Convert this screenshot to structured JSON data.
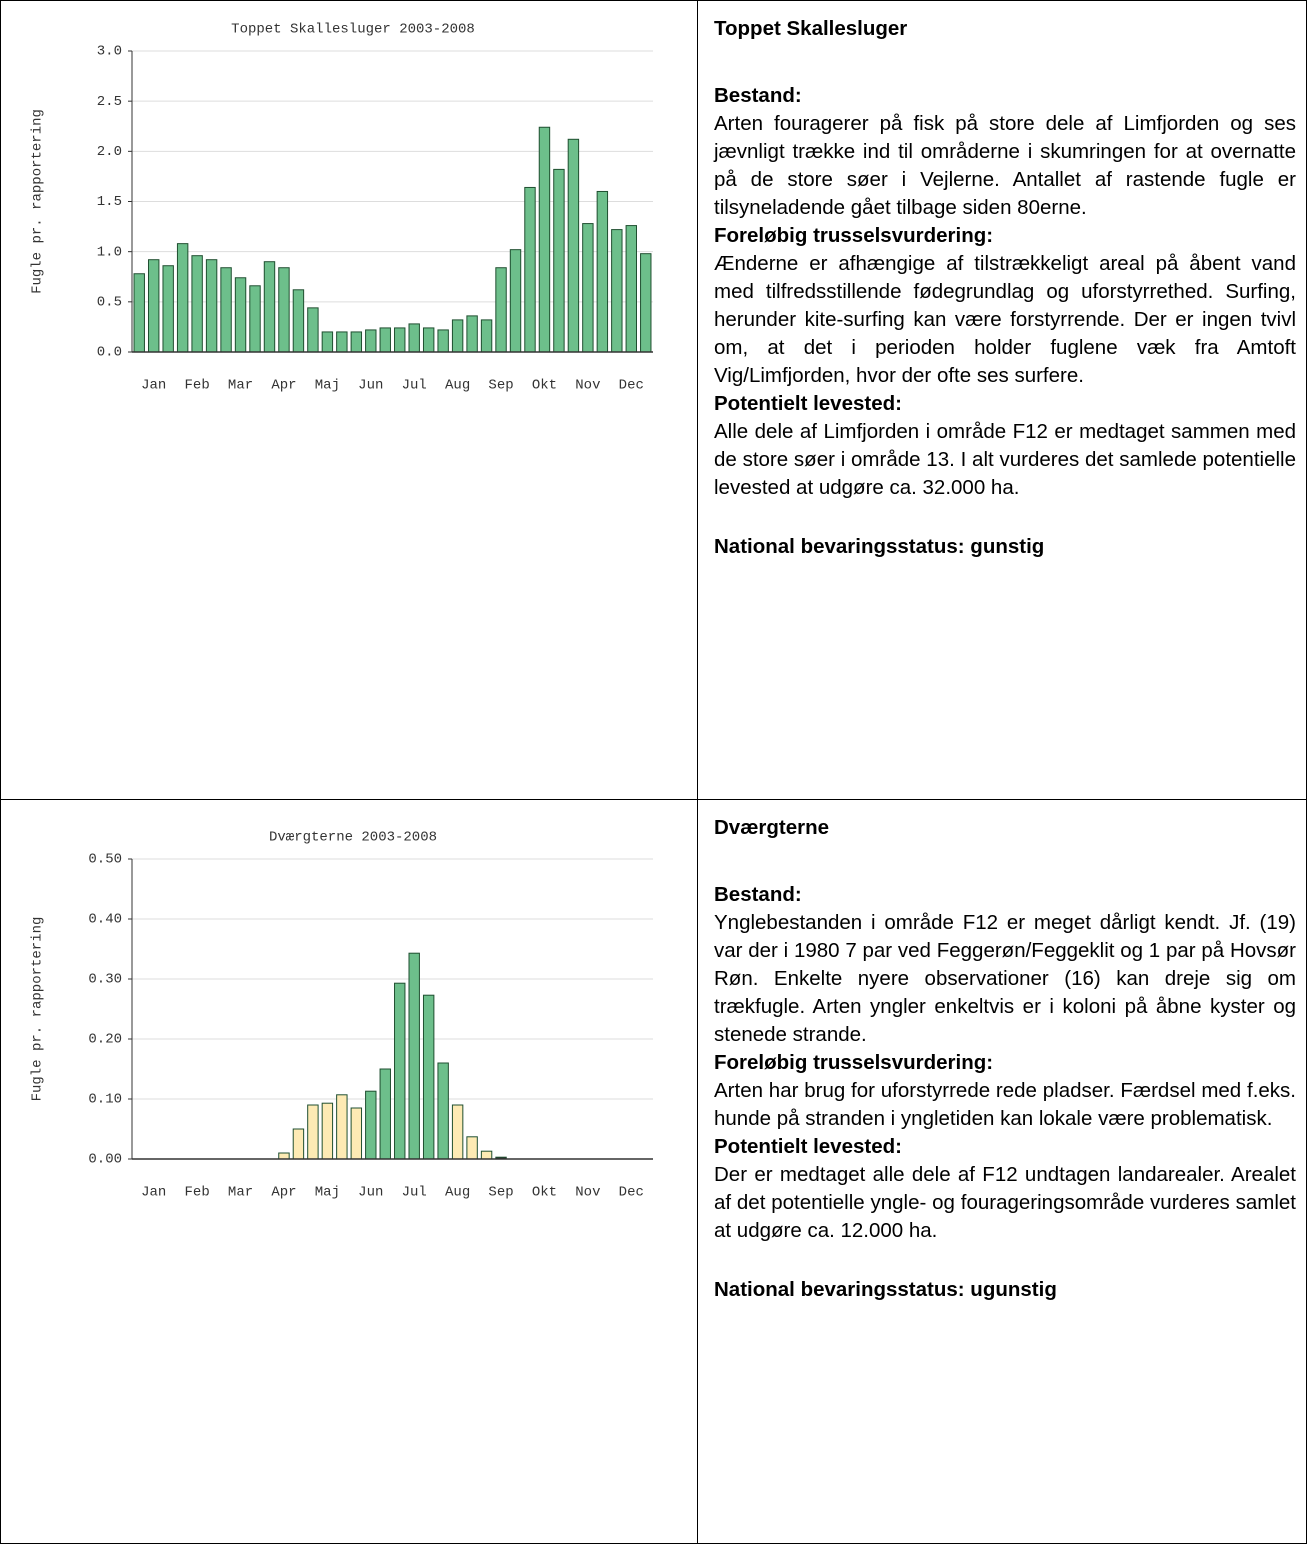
{
  "chart_data": [
    {
      "type": "bar",
      "title": "Toppet Skallesluger 2003-2008",
      "y_label": "Fugle pr. rapportering",
      "categories": [
        null,
        "Jan",
        null,
        null,
        "Feb",
        null,
        null,
        "Mar",
        null,
        null,
        "Apr",
        null,
        null,
        "Maj",
        null,
        null,
        "Jun",
        null,
        null,
        "Jul",
        null,
        null,
        "Aug",
        null,
        null,
        "Sep",
        null,
        null,
        "Okt",
        null,
        null,
        "Nov",
        null,
        null,
        "Dec",
        null
      ],
      "values": [
        0.78,
        0.92,
        0.86,
        1.08,
        0.96,
        0.92,
        0.84,
        0.74,
        0.66,
        0.9,
        0.84,
        0.62,
        0.44,
        0.2,
        0.2,
        0.2,
        0.22,
        0.24,
        0.24,
        0.28,
        0.24,
        0.22,
        0.32,
        0.36,
        0.32,
        0.84,
        1.02,
        1.64,
        2.24,
        1.82,
        2.12,
        1.28,
        1.6,
        1.22,
        1.26,
        0.98
      ],
      "color": "#6dbf8b",
      "ylim": [
        0,
        3
      ],
      "yticks": [
        {
          "value": 0,
          "label": "0.0"
        },
        {
          "value": 0.5,
          "label": "0.5"
        },
        {
          "value": 1,
          "label": "1.0"
        },
        {
          "value": 1.5,
          "label": "1.5"
        },
        {
          "value": 2,
          "label": "2.0"
        },
        {
          "value": 2.5,
          "label": "2.5"
        },
        {
          "value": 3,
          "label": "3.0"
        }
      ],
      "grid": true
    },
    {
      "type": "bar",
      "title": "Dværgterne 2003-2008",
      "y_label": "Fugle pr. rapportering",
      "categories": [
        null,
        "Jan",
        null,
        null,
        "Feb",
        null,
        null,
        "Mar",
        null,
        null,
        "Apr",
        null,
        null,
        "Maj",
        null,
        null,
        "Jun",
        null,
        null,
        "Jul",
        null,
        null,
        "Aug",
        null,
        null,
        "Sep",
        null,
        null,
        "Okt",
        null,
        null,
        "Nov",
        null,
        null,
        "Dec",
        null
      ],
      "values": [
        0,
        0,
        0,
        0,
        0,
        0,
        0,
        0,
        0,
        0,
        0.01,
        0.05,
        0.09,
        0.093,
        0.107,
        0.085,
        0.113,
        0.15,
        0.293,
        0.343,
        0.273,
        0.16,
        0.09,
        0.037,
        0.013,
        0.003,
        0,
        0,
        0,
        0,
        0,
        0,
        0,
        0,
        0,
        0
      ],
      "colors": [
        "#fdeab4",
        "#fdeab4",
        "#fdeab4",
        "#fdeab4",
        "#fdeab4",
        "#fdeab4",
        "#fdeab4",
        "#fdeab4",
        "#fdeab4",
        "#fdeab4",
        "#fdeab4",
        "#fdeab4",
        "#fdeab4",
        "#fdeab4",
        "#fdeab4",
        "#fdeab4",
        "#6dbf8b",
        "#6dbf8b",
        "#6dbf8b",
        "#6dbf8b",
        "#6dbf8b",
        "#6dbf8b",
        "#fdeab4",
        "#fdeab4",
        "#fdeab4",
        "#333333",
        "#fdeab4",
        "#fdeab4",
        "#fdeab4",
        "#fdeab4",
        "#fdeab4",
        "#fdeab4",
        "#fdeab4",
        "#fdeab4",
        "#fdeab4",
        "#fdeab4"
      ],
      "ylim": [
        0,
        0.5
      ],
      "yticks": [
        {
          "value": 0,
          "label": "0.00"
        },
        {
          "value": 0.1,
          "label": "0.10"
        },
        {
          "value": 0.2,
          "label": "0.20"
        },
        {
          "value": 0.3,
          "label": "0.30"
        },
        {
          "value": 0.4,
          "label": "0.40"
        },
        {
          "value": 0.5,
          "label": "0.50"
        }
      ],
      "grid": true
    }
  ],
  "rows": [
    {
      "title": "Toppet Skallesluger",
      "sections": [
        {
          "heading": "Bestand:",
          "text": "Arten fouragerer på fisk på store dele af Limfjorden og ses jævnligt trække ind til områderne i skumringen for at overnatte på de store søer i Vejlerne. Antallet af rastende fugle er tilsyneladende gået tilbage siden 80erne."
        },
        {
          "heading": "Foreløbig trusselsvurdering:",
          "text": "Ænderne er afhængige af tilstrækkeligt areal på åbent vand med tilfredsstillende fødegrundlag og uforstyrrethed. Surfing, herunder kite-surfing kan være forstyrrende. Der er ingen tvivl om, at det i perioden holder fuglene væk fra Amtoft Vig/Limfjorden, hvor der ofte ses surfere."
        },
        {
          "heading": "Potentielt levested:",
          "text": "Alle dele af Limfjorden i område F12 er medtaget sammen med de store søer i område 13. I alt vurderes det samlede potentielle levested at udgøre ca. 32.000 ha."
        }
      ],
      "status": "National bevaringsstatus: gunstig"
    },
    {
      "title": "Dværgterne",
      "sections": [
        {
          "heading": "Bestand:",
          "text": "Ynglebestanden i område F12 er meget dårligt kendt. Jf. (19) var der i 1980 7 par ved Feggerøn/Feggeklit og 1 par på Hovsør Røn. Enkelte nyere observationer (16) kan dreje sig om trækfugle. Arten yngler enkeltvis er i koloni på åbne kyster og stenede strande."
        },
        {
          "heading": "Foreløbig trusselsvurdering:",
          "text": "Arten har brug for uforstyrrede rede pladser. Færdsel med f.eks. hunde på stranden i yngletiden kan lokale være problematisk."
        },
        {
          "heading": "Potentielt levested:",
          "text": "Der er medtaget alle dele af F12 undtagen landarealer. Arealet af det potentielle yngle- og fourageringsområde vurderes samlet at udgøre ca. 12.000 ha."
        }
      ],
      "status": "National bevaringsstatus: ugunstig"
    }
  ]
}
